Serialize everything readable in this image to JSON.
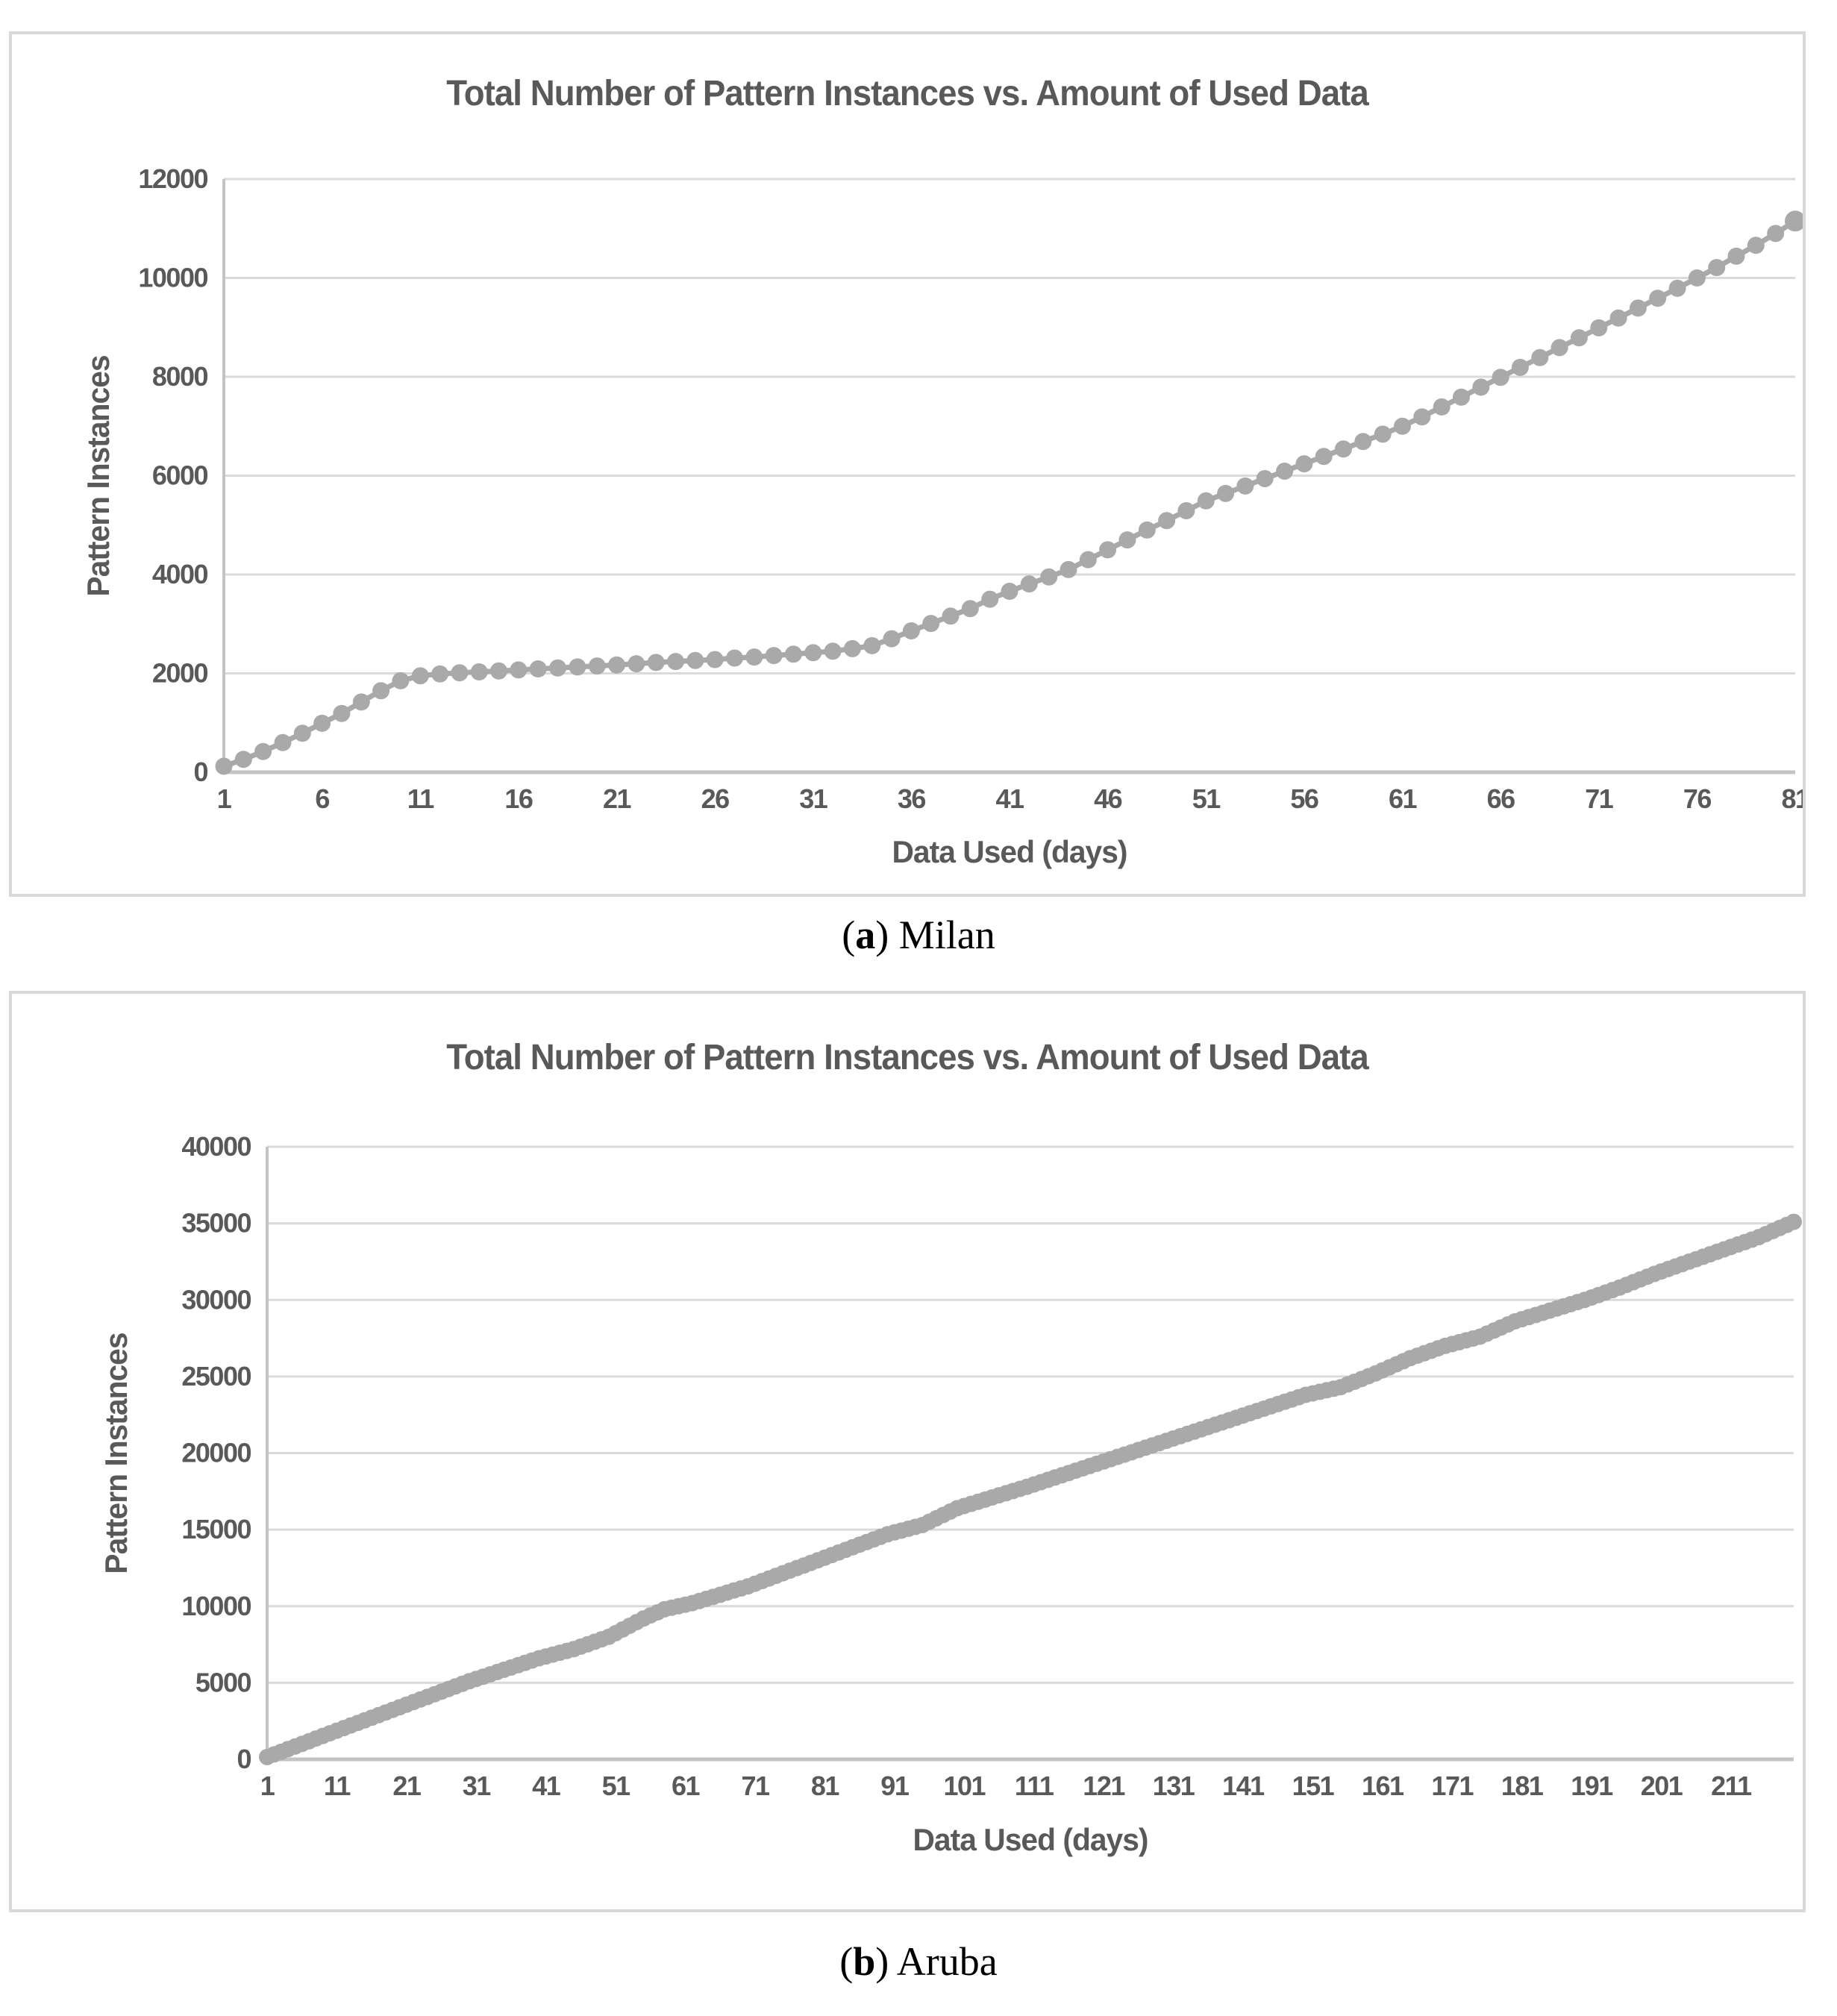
{
  "colors": {
    "series": "#a9a9a9",
    "gridline": "#dadada",
    "axis_line": "#c3c3c3",
    "chart_text": "#595959",
    "panel_border": "#d9d9d9",
    "caption_text": "#000000",
    "background": "#ffffff"
  },
  "caption_a": {
    "paren_open": "(",
    "letter": "a",
    "paren_close": ")",
    "label": " Milan"
  },
  "caption_b": {
    "paren_open": "(",
    "letter": "b",
    "paren_close": ")",
    "label": " Aruba"
  },
  "chart_data": [
    {
      "type": "line",
      "region": "Milan",
      "title": "Total Number of Pattern Instances vs. Amount of Used Data",
      "xlabel": "Data Used (days)",
      "ylabel": "Pattern Instances",
      "grid": true,
      "legend": "none",
      "marker": "circle",
      "marker_radius": 11.5,
      "end_marker_radius": 14,
      "line_width": 7,
      "x_start": 1,
      "x_step": 1,
      "xlim": [
        1,
        81
      ],
      "ylim": [
        0,
        12000
      ],
      "y_ticks": [
        0,
        2000,
        4000,
        6000,
        8000,
        10000,
        12000
      ],
      "x_ticks": [
        1,
        6,
        11,
        16,
        21,
        26,
        31,
        36,
        41,
        46,
        51,
        56,
        61,
        66,
        71,
        76,
        81
      ],
      "values": [
        120,
        260,
        420,
        600,
        790,
        990,
        1190,
        1420,
        1650,
        1850,
        1950,
        1990,
        2010,
        2030,
        2050,
        2070,
        2090,
        2110,
        2130,
        2150,
        2170,
        2195,
        2220,
        2240,
        2260,
        2280,
        2310,
        2330,
        2360,
        2390,
        2420,
        2450,
        2500,
        2560,
        2700,
        2860,
        3010,
        3160,
        3310,
        3500,
        3660,
        3810,
        3950,
        4100,
        4300,
        4500,
        4700,
        4900,
        5090,
        5290,
        5490,
        5640,
        5790,
        5940,
        6090,
        6240,
        6390,
        6540,
        6690,
        6840,
        7000,
        7190,
        7390,
        7590,
        7790,
        7990,
        8190,
        8390,
        8590,
        8790,
        8990,
        9190,
        9390,
        9590,
        9790,
        10000,
        10210,
        10440,
        10660,
        10900,
        11150
      ]
    },
    {
      "type": "line",
      "region": "Aruba",
      "title": "Total Number of Pattern Instances vs. Amount of Used Data",
      "xlabel": "Data Used (days)",
      "ylabel": "Pattern Instances",
      "grid": true,
      "legend": "none",
      "marker": "circle",
      "marker_radius": 11,
      "end_marker_radius": 11,
      "line_width": 9,
      "x_start": 1,
      "x_step": 1,
      "xlim": [
        1,
        220
      ],
      "ylim": [
        0,
        40000
      ],
      "y_ticks": [
        0,
        5000,
        10000,
        15000,
        20000,
        25000,
        30000,
        35000,
        40000
      ],
      "x_ticks": [
        1,
        11,
        21,
        31,
        41,
        51,
        61,
        71,
        81,
        91,
        101,
        111,
        121,
        131,
        141,
        151,
        161,
        171,
        181,
        191,
        201,
        211
      ],
      "values": [
        150,
        320,
        490,
        670,
        840,
        1010,
        1180,
        1360,
        1530,
        1700,
        1870,
        2040,
        2210,
        2380,
        2550,
        2720,
        2890,
        3060,
        3230,
        3400,
        3570,
        3740,
        3910,
        4080,
        4250,
        4420,
        4590,
        4760,
        4930,
        5100,
        5250,
        5400,
        5550,
        5700,
        5850,
        6000,
        6150,
        6300,
        6450,
        6600,
        6720,
        6840,
        6960,
        7080,
        7200,
        7360,
        7520,
        7680,
        7840,
        8000,
        8240,
        8480,
        8720,
        8960,
        9200,
        9400,
        9600,
        9800,
        9900,
        10000,
        10100,
        10200,
        10340,
        10480,
        10610,
        10750,
        10890,
        11030,
        11160,
        11300,
        11470,
        11640,
        11810,
        11980,
        12150,
        12320,
        12490,
        12660,
        12830,
        13000,
        13170,
        13340,
        13510,
        13680,
        13850,
        14020,
        14190,
        14360,
        14530,
        14700,
        14820,
        14940,
        15060,
        15180,
        15300,
        15520,
        15740,
        15960,
        16180,
        16400,
        16540,
        16680,
        16820,
        16960,
        17100,
        17240,
        17380,
        17520,
        17660,
        17800,
        17950,
        18100,
        18250,
        18400,
        18550,
        18700,
        18850,
        19000,
        19150,
        19300,
        19450,
        19600,
        19750,
        19900,
        20050,
        20200,
        20350,
        20500,
        20650,
        20800,
        20950,
        21100,
        21250,
        21400,
        21550,
        21700,
        21850,
        22000,
        22150,
        22300,
        22450,
        22600,
        22750,
        22900,
        23050,
        23200,
        23350,
        23500,
        23650,
        23800,
        23900,
        24000,
        24100,
        24200,
        24300,
        24480,
        24660,
        24840,
        25020,
        25200,
        25400,
        25600,
        25800,
        26000,
        26200,
        26360,
        26520,
        26680,
        26840,
        27000,
        27120,
        27240,
        27360,
        27480,
        27600,
        27800,
        28000,
        28200,
        28400,
        28600,
        28740,
        28880,
        29020,
        29160,
        29300,
        29440,
        29580,
        29720,
        29860,
        30000,
        30160,
        30320,
        30480,
        30640,
        30800,
        30980,
        31160,
        31340,
        31520,
        31700,
        31860,
        32020,
        32180,
        32340,
        32500,
        32660,
        32820,
        32980,
        33140,
        33300,
        33460,
        33620,
        33780,
        33940,
        34100,
        34300,
        34500,
        34700,
        34900,
        35100
      ]
    }
  ]
}
